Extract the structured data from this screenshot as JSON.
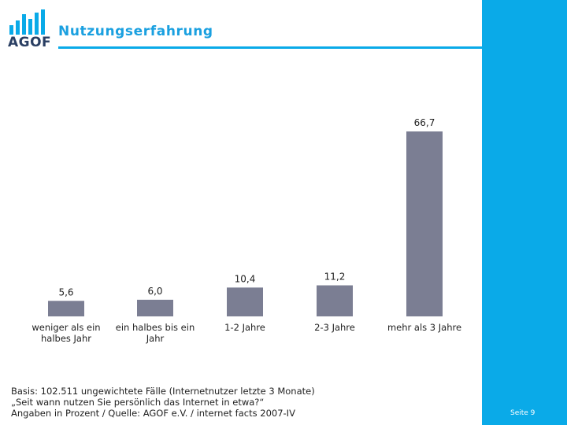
{
  "header": {
    "logo_text": "AGOF",
    "title": "Nutzungserfahrung"
  },
  "chart_data": {
    "type": "bar",
    "title": "Nutzungserfahrung",
    "categories": [
      [
        "weniger als ein",
        "halbes Jahr"
      ],
      [
        "ein halbes bis ein",
        "Jahr"
      ],
      [
        "1-2 Jahre"
      ],
      [
        "2-3 Jahre"
      ],
      [
        "mehr als 3 Jahre"
      ]
    ],
    "values": [
      5.6,
      6.0,
      10.4,
      11.2,
      66.7
    ],
    "value_labels": [
      "5,6",
      "6,0",
      "10,4",
      "11,2",
      "66,7"
    ],
    "xlabel": "",
    "ylabel": "",
    "ylim": [
      0,
      66.7
    ],
    "grid": false,
    "bar_color": "#7b7e93"
  },
  "footnote": {
    "line1": "Basis: 102.511 ungewichtete Fälle (Internetnutzer letzte 3 Monate)",
    "line2": "„Seit wann nutzen Sie persönlich das Internet in etwa?“",
    "line3": "Angaben in Prozent / Quelle: AGOF e.V. / internet facts 2007-IV"
  },
  "page": {
    "number_label": "Seite 9"
  },
  "colors": {
    "accent": "#0aaae8",
    "title": "#1aa0e0",
    "logo": "#2a3f63"
  }
}
